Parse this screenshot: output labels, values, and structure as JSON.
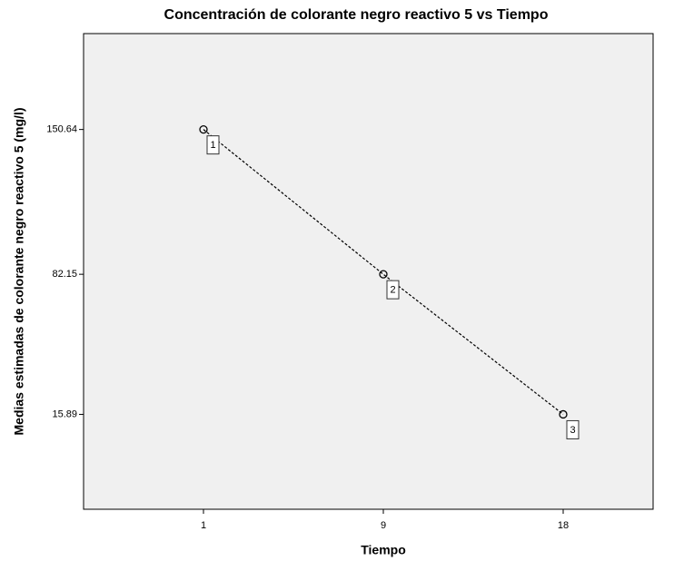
{
  "chart_data": {
    "type": "line",
    "title": "Concentración de colorante negro reactivo 5 vs Tiempo",
    "x_label": "Tiempo",
    "y_label": "Medias estimadas de colorante negro reactivo 5 (mg/l)",
    "categories": [
      "1",
      "9",
      "18"
    ],
    "values": [
      150.64,
      82.15,
      15.89
    ],
    "point_labels": [
      "1",
      "2",
      "3"
    ],
    "color": "#000000",
    "ylim": [
      -29,
      196
    ],
    "yticks": [
      150.64,
      82.15,
      15.89
    ],
    "grid": false
  }
}
